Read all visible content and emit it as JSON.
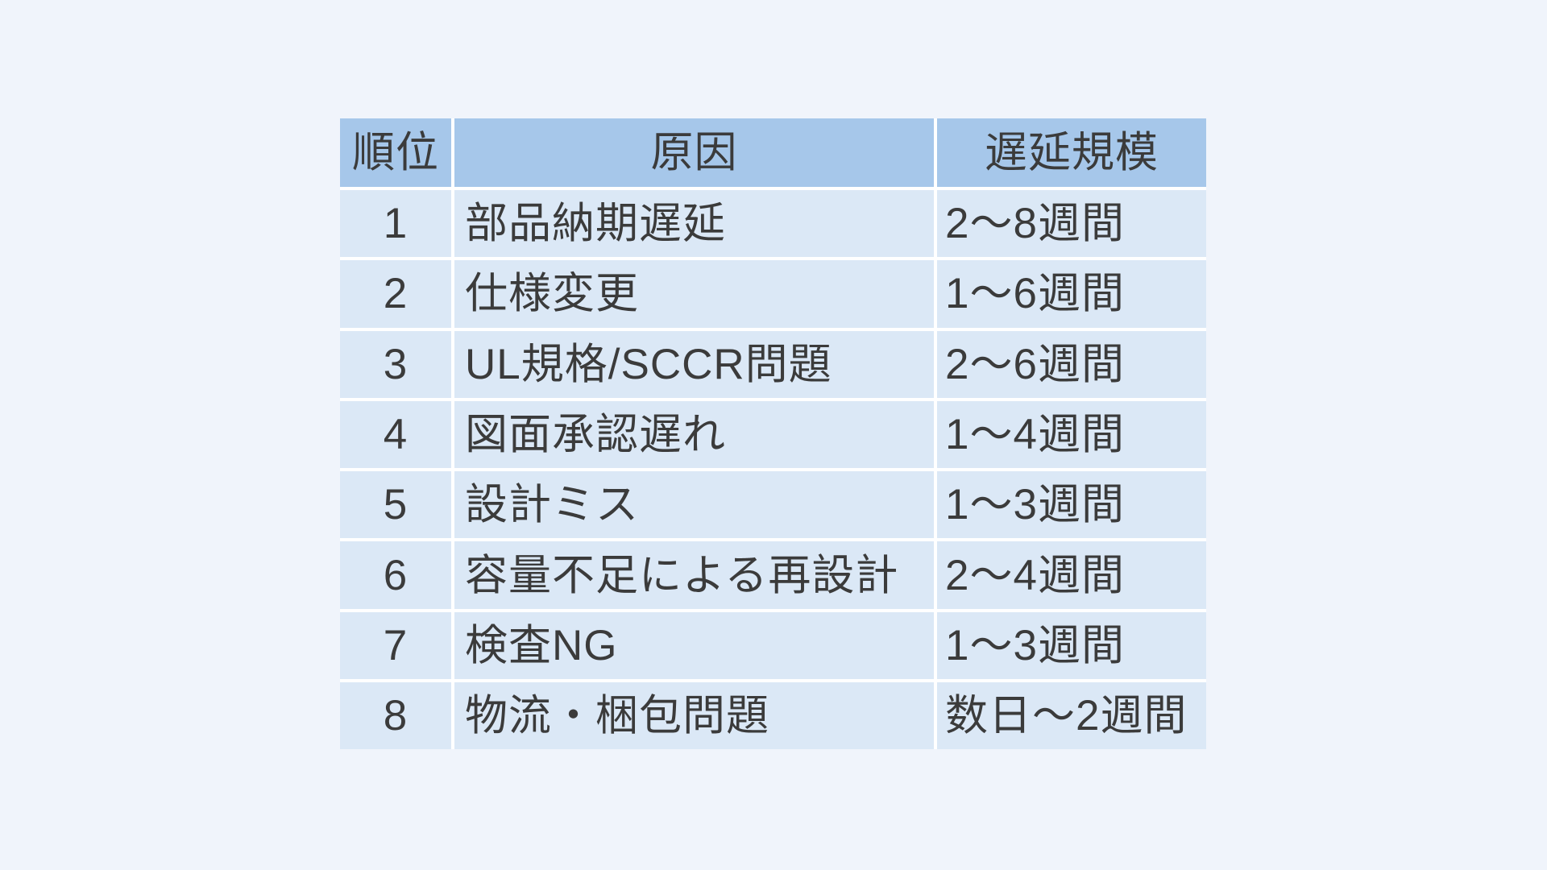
{
  "chart_data": {
    "type": "table",
    "columns": [
      "順位",
      "原因",
      "遅延規模"
    ],
    "rows": [
      [
        "1",
        "部品納期遅延",
        "2〜8週間"
      ],
      [
        "2",
        "仕様変更",
        "1〜6週間"
      ],
      [
        "3",
        "UL規格/SCCR問題",
        "2〜6週間"
      ],
      [
        "4",
        "図面承認遅れ",
        "1〜4週間"
      ],
      [
        "5",
        "設計ミス",
        "1〜3週間"
      ],
      [
        "6",
        "容量不足による再設計",
        "2〜4週間"
      ],
      [
        "7",
        "検査NG",
        "1〜3週間"
      ],
      [
        "8",
        "物流・梱包問題",
        "数日〜2週間"
      ]
    ],
    "column_semantics": [
      "rank",
      "cause",
      "delay-scale"
    ],
    "layout": {
      "grid": "white-gap-lines",
      "banding": "uniform-light-blue-rows"
    }
  },
  "colors": {
    "page_background": "#F0F4FB",
    "header_background": "#A6C7EA",
    "row_background": "#DBE8F6",
    "grid_line": "#FFFFFF",
    "text": "#3B3B3B"
  }
}
